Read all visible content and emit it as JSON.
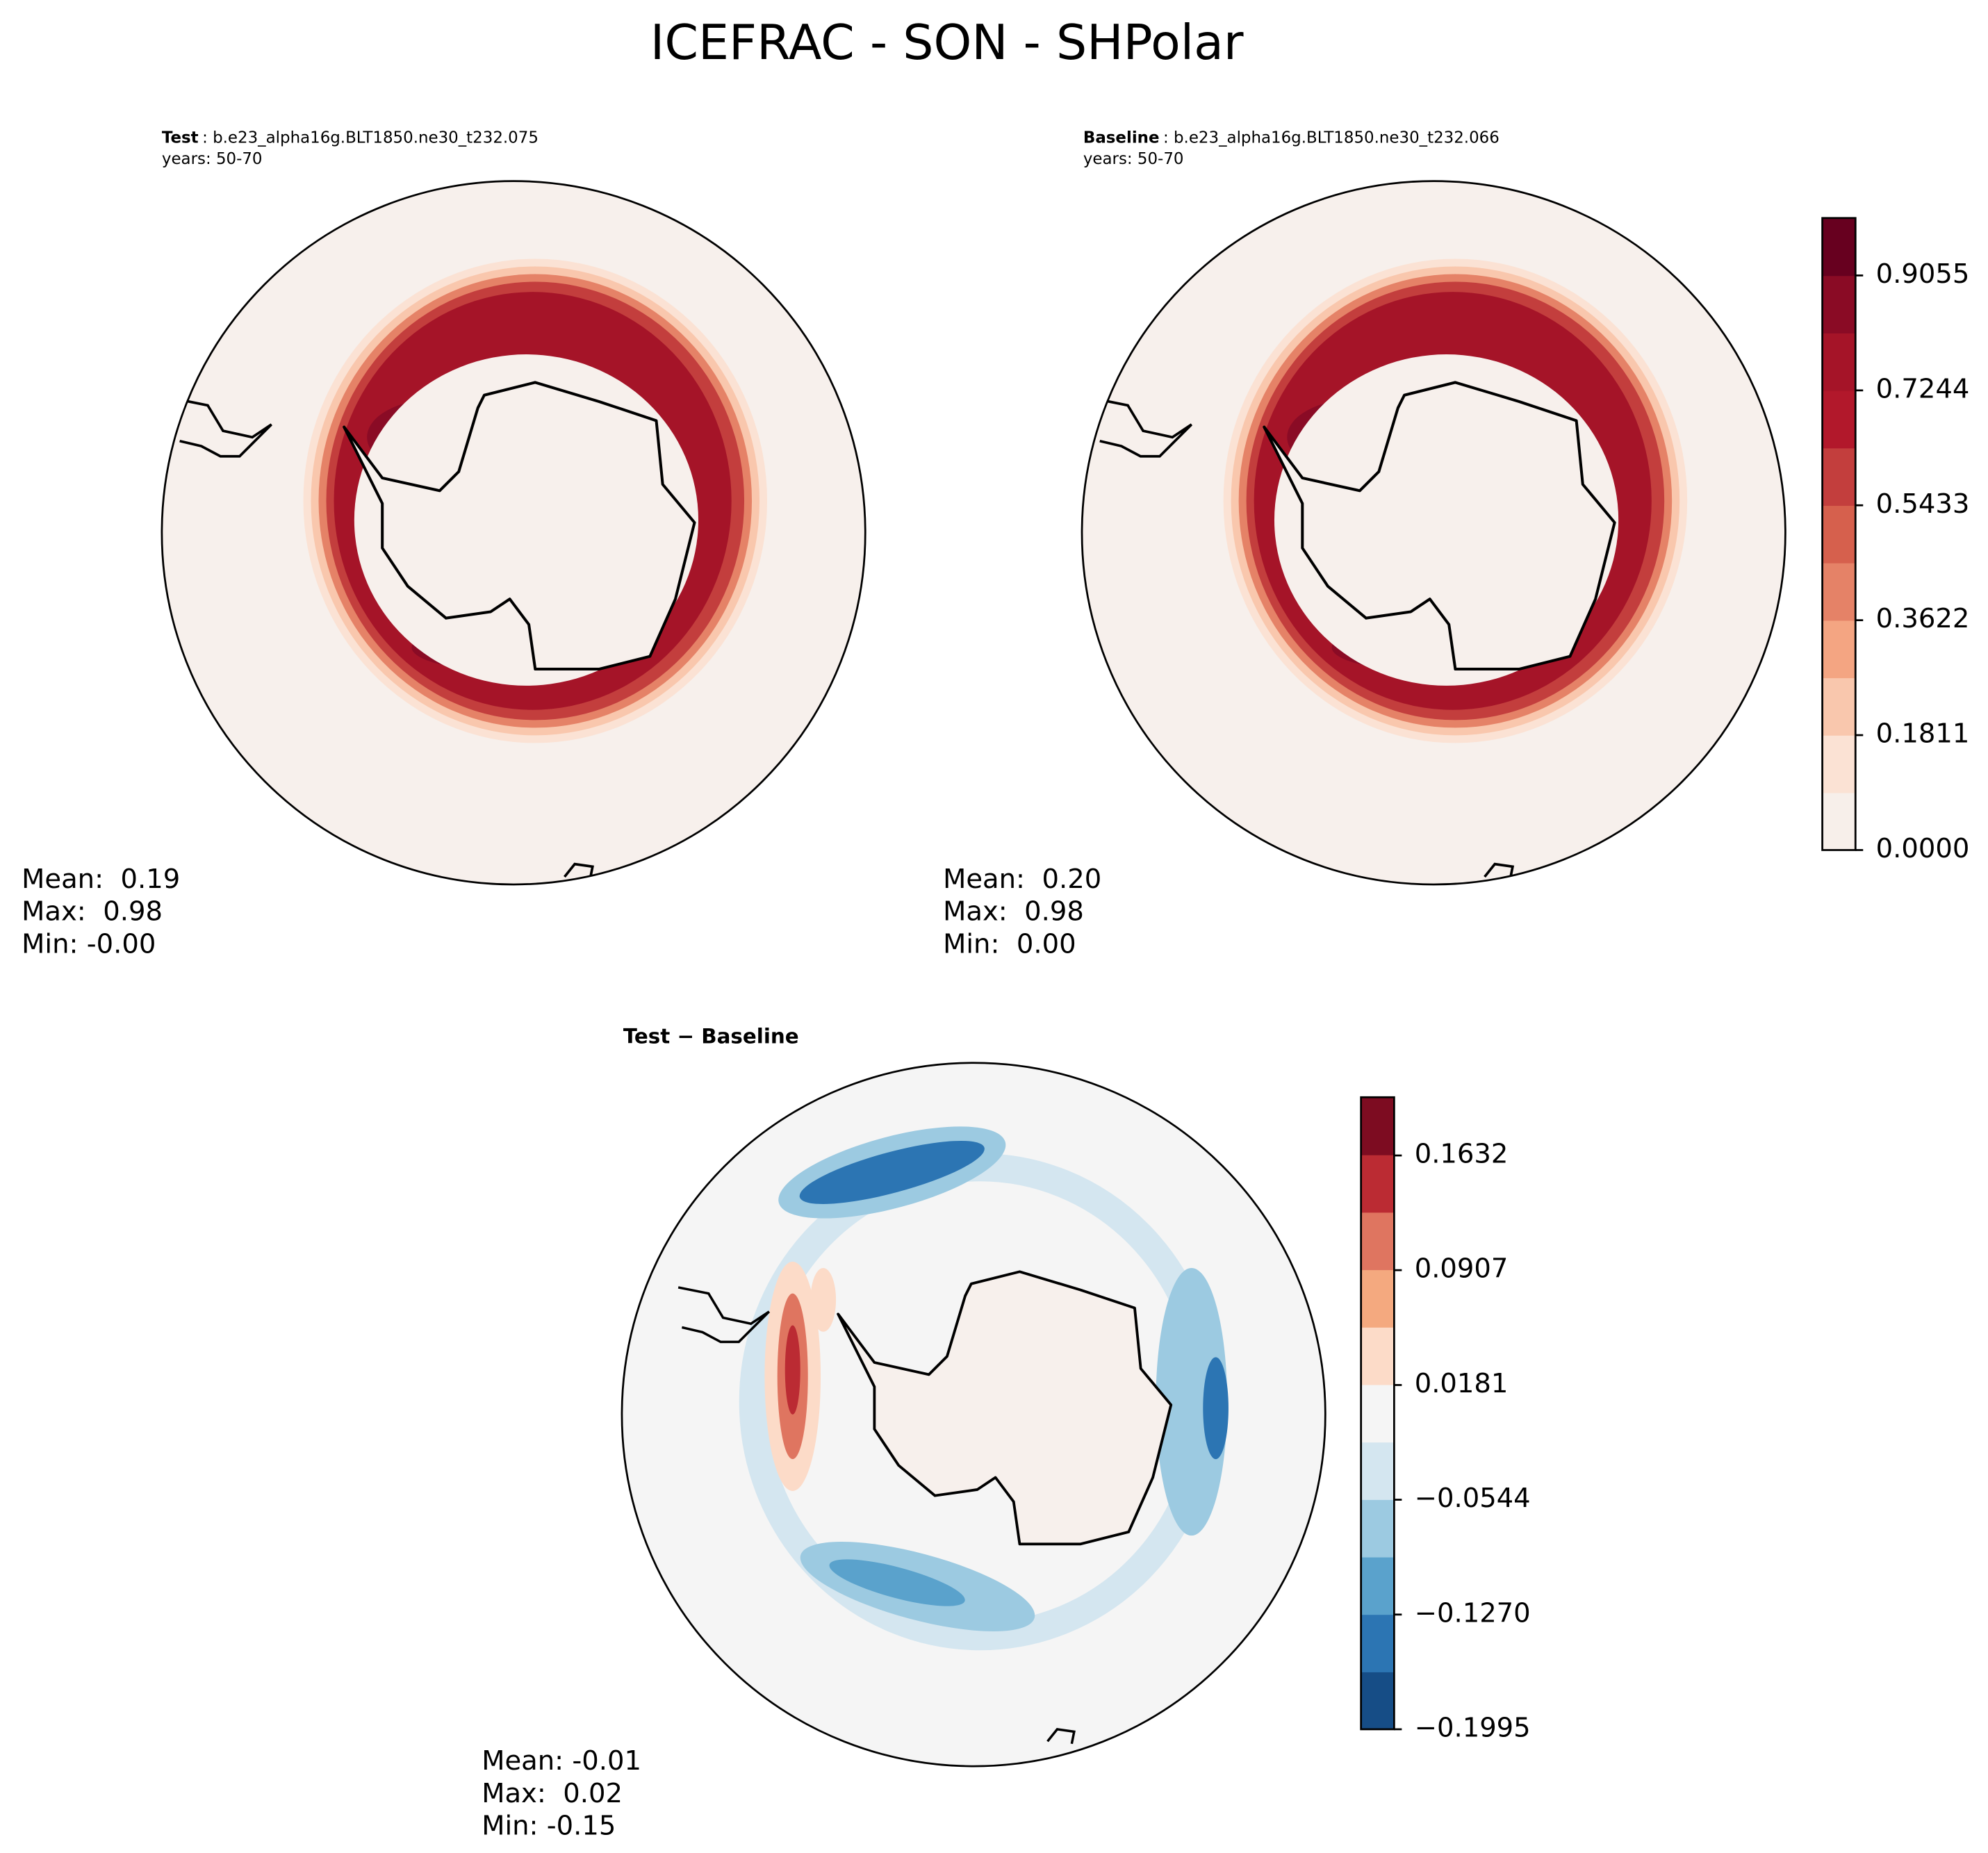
{
  "title": "ICEFRAC - SON - SHPolar",
  "chart_data": [
    {
      "type": "map",
      "title_label": "Test",
      "title_text": ": b.e23_alpha16g.BLT1850.ne30_t232.075",
      "years": "years: 50-70",
      "stats": [
        "Mean:  0.19",
        "Max:  0.98",
        "Min: -0.00"
      ]
    },
    {
      "type": "map",
      "title_label": "Baseline",
      "title_text": ": b.e23_alpha16g.BLT1850.ne30_t232.066",
      "years": "years: 50-70",
      "stats": [
        "Mean:  0.20",
        "Max:  0.98",
        "Min:  0.00"
      ],
      "colorbar": {
        "ylim": [
          0,
          0.996
        ],
        "yticks": [
          {
            "value": 0,
            "label": "0.0000"
          },
          0.1811,
          0.3622,
          0.5433,
          0.7244,
          0.9055
        ],
        "colors": [
          "#f7efea",
          "#fbe2d4",
          "#f9c7ad",
          "#f4a582",
          "#e58267",
          "#d6604d",
          "#c33e3d",
          "#b2182b",
          "#a51428",
          "#8a0b25",
          "#67001f"
        ]
      }
    },
    {
      "type": "map",
      "title": "Test − Baseline",
      "stats": [
        "Mean: -0.01",
        "Max:  0.02",
        "Min: -0.15"
      ],
      "colorbar": {
        "ylim": [
          -0.1995,
          0.2
        ],
        "yticks": [
          {
            "value": -0.1995,
            "label": "−0.1995"
          },
          {
            "value": -0.127,
            "label": "−0.1270"
          },
          {
            "value": -0.0544,
            "label": "−0.0544"
          },
          0.0181,
          0.0907,
          0.1632
        ],
        "colors": [
          "#164d86",
          "#2c75b3",
          "#5aa2cc",
          "#9ccae1",
          "#d4e6f0",
          "#f5f5f5",
          "#fcdbc8",
          "#f4a97f",
          "#df7560",
          "#bb2b33",
          "#7d0c21"
        ]
      }
    }
  ]
}
